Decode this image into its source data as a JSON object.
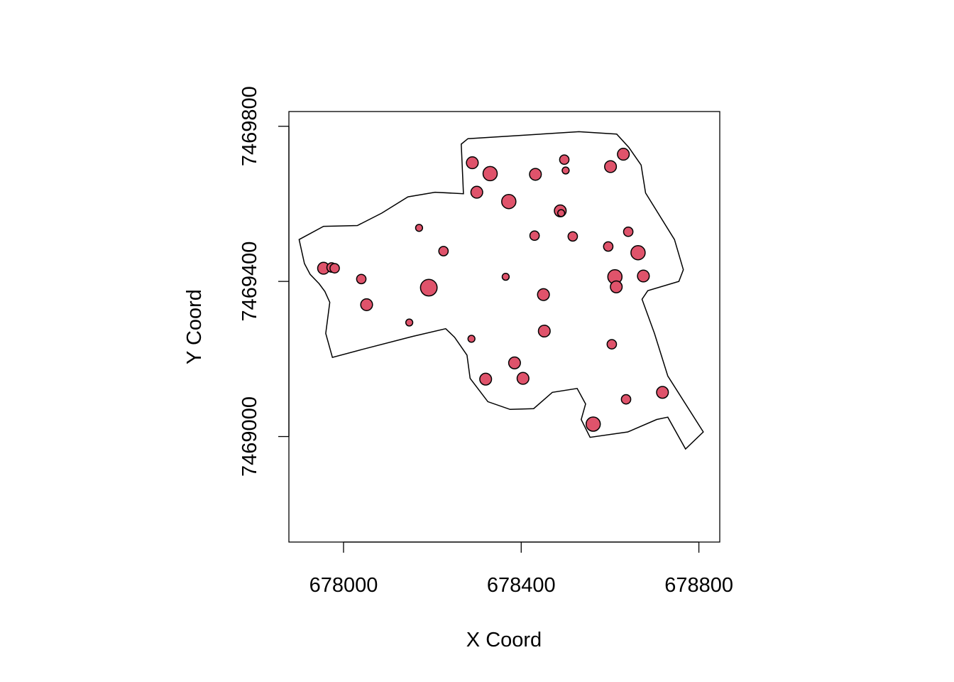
{
  "chart_data": {
    "type": "scatter",
    "title": "",
    "xlabel": "X Coord",
    "ylabel": "Y Coord",
    "xlim": [
      677877,
      678847
    ],
    "ylim": [
      7468728,
      7469838
    ],
    "x_ticks": [
      678000,
      678400,
      678800
    ],
    "y_ticks": [
      7469000,
      7469400,
      7469800
    ],
    "x_tick_labels": [
      "678000",
      "678400",
      "678800"
    ],
    "y_tick_labels": [
      "7469000",
      "7469400",
      "7469800"
    ],
    "grid": false,
    "legend": "none",
    "point_fill": "#DF536B",
    "point_stroke": "#000000",
    "boundary": [
      [
        677900,
        7469508
      ],
      [
        677912,
        7469446
      ],
      [
        677925,
        7469418
      ],
      [
        677945,
        7469394
      ],
      [
        677958,
        7469374
      ],
      [
        677969,
        7469346
      ],
      [
        677960,
        7469266
      ],
      [
        677975,
        7469204
      ],
      [
        678040,
        7469224
      ],
      [
        678155,
        7469258
      ],
      [
        678230,
        7469278
      ],
      [
        678250,
        7469256
      ],
      [
        678278,
        7469210
      ],
      [
        678285,
        7469150
      ],
      [
        678325,
        7469090
      ],
      [
        678375,
        7469070
      ],
      [
        678428,
        7469072
      ],
      [
        678470,
        7469114
      ],
      [
        678526,
        7469124
      ],
      [
        678545,
        7469084
      ],
      [
        678535,
        7469044
      ],
      [
        678555,
        7468998
      ],
      [
        678640,
        7469012
      ],
      [
        678705,
        7469044
      ],
      [
        678730,
        7469050
      ],
      [
        678770,
        7468968
      ],
      [
        678810,
        7469012
      ],
      [
        678730,
        7469156
      ],
      [
        678700,
        7469266
      ],
      [
        678672,
        7469354
      ],
      [
        678685,
        7469376
      ],
      [
        678755,
        7469400
      ],
      [
        678765,
        7469430
      ],
      [
        678745,
        7469508
      ],
      [
        678680,
        7469628
      ],
      [
        678670,
        7469700
      ],
      [
        678642,
        7469746
      ],
      [
        678615,
        7469780
      ],
      [
        678530,
        7469786
      ],
      [
        678280,
        7469768
      ],
      [
        678265,
        7469754
      ],
      [
        678268,
        7469676
      ],
      [
        678270,
        7469626
      ],
      [
        678206,
        7469630
      ],
      [
        678145,
        7469618
      ],
      [
        678086,
        7469576
      ],
      [
        678031,
        7469544
      ],
      [
        677955,
        7469542
      ]
    ],
    "points": [
      {
        "x": 677955,
        "y": 7469434,
        "size": 3
      },
      {
        "x": 677973,
        "y": 7469436,
        "size": 2
      },
      {
        "x": 677980,
        "y": 7469434,
        "size": 2
      },
      {
        "x": 678040,
        "y": 7469406,
        "size": 2
      },
      {
        "x": 678052,
        "y": 7469340,
        "size": 3
      },
      {
        "x": 678148,
        "y": 7469294,
        "size": 1
      },
      {
        "x": 678170,
        "y": 7469538,
        "size": 1
      },
      {
        "x": 678192,
        "y": 7469384,
        "size": 5
      },
      {
        "x": 678225,
        "y": 7469478,
        "size": 2
      },
      {
        "x": 678288,
        "y": 7469252,
        "size": 1
      },
      {
        "x": 678290,
        "y": 7469706,
        "size": 3
      },
      {
        "x": 678300,
        "y": 7469630,
        "size": 3
      },
      {
        "x": 678320,
        "y": 7469148,
        "size": 3
      },
      {
        "x": 678330,
        "y": 7469678,
        "size": 4
      },
      {
        "x": 678365,
        "y": 7469412,
        "size": 1
      },
      {
        "x": 678372,
        "y": 7469606,
        "size": 4
      },
      {
        "x": 678385,
        "y": 7469190,
        "size": 3
      },
      {
        "x": 678404,
        "y": 7469150,
        "size": 3
      },
      {
        "x": 678430,
        "y": 7469518,
        "size": 2
      },
      {
        "x": 678432,
        "y": 7469676,
        "size": 3
      },
      {
        "x": 678450,
        "y": 7469366,
        "size": 3
      },
      {
        "x": 678452,
        "y": 7469272,
        "size": 3
      },
      {
        "x": 678488,
        "y": 7469582,
        "size": 3
      },
      {
        "x": 678490,
        "y": 7469576,
        "size": 1
      },
      {
        "x": 678497,
        "y": 7469714,
        "size": 2
      },
      {
        "x": 678500,
        "y": 7469686,
        "size": 1
      },
      {
        "x": 678516,
        "y": 7469516,
        "size": 2
      },
      {
        "x": 678562,
        "y": 7469032,
        "size": 4
      },
      {
        "x": 678596,
        "y": 7469490,
        "size": 2
      },
      {
        "x": 678601,
        "y": 7469696,
        "size": 3
      },
      {
        "x": 678604,
        "y": 7469238,
        "size": 2
      },
      {
        "x": 678611,
        "y": 7469412,
        "size": 4
      },
      {
        "x": 678614,
        "y": 7469386,
        "size": 3
      },
      {
        "x": 678630,
        "y": 7469728,
        "size": 3
      },
      {
        "x": 678636,
        "y": 7469096,
        "size": 2
      },
      {
        "x": 678641,
        "y": 7469528,
        "size": 2
      },
      {
        "x": 678663,
        "y": 7469474,
        "size": 4
      },
      {
        "x": 678675,
        "y": 7469414,
        "size": 3
      },
      {
        "x": 678718,
        "y": 7469114,
        "size": 3
      }
    ]
  }
}
